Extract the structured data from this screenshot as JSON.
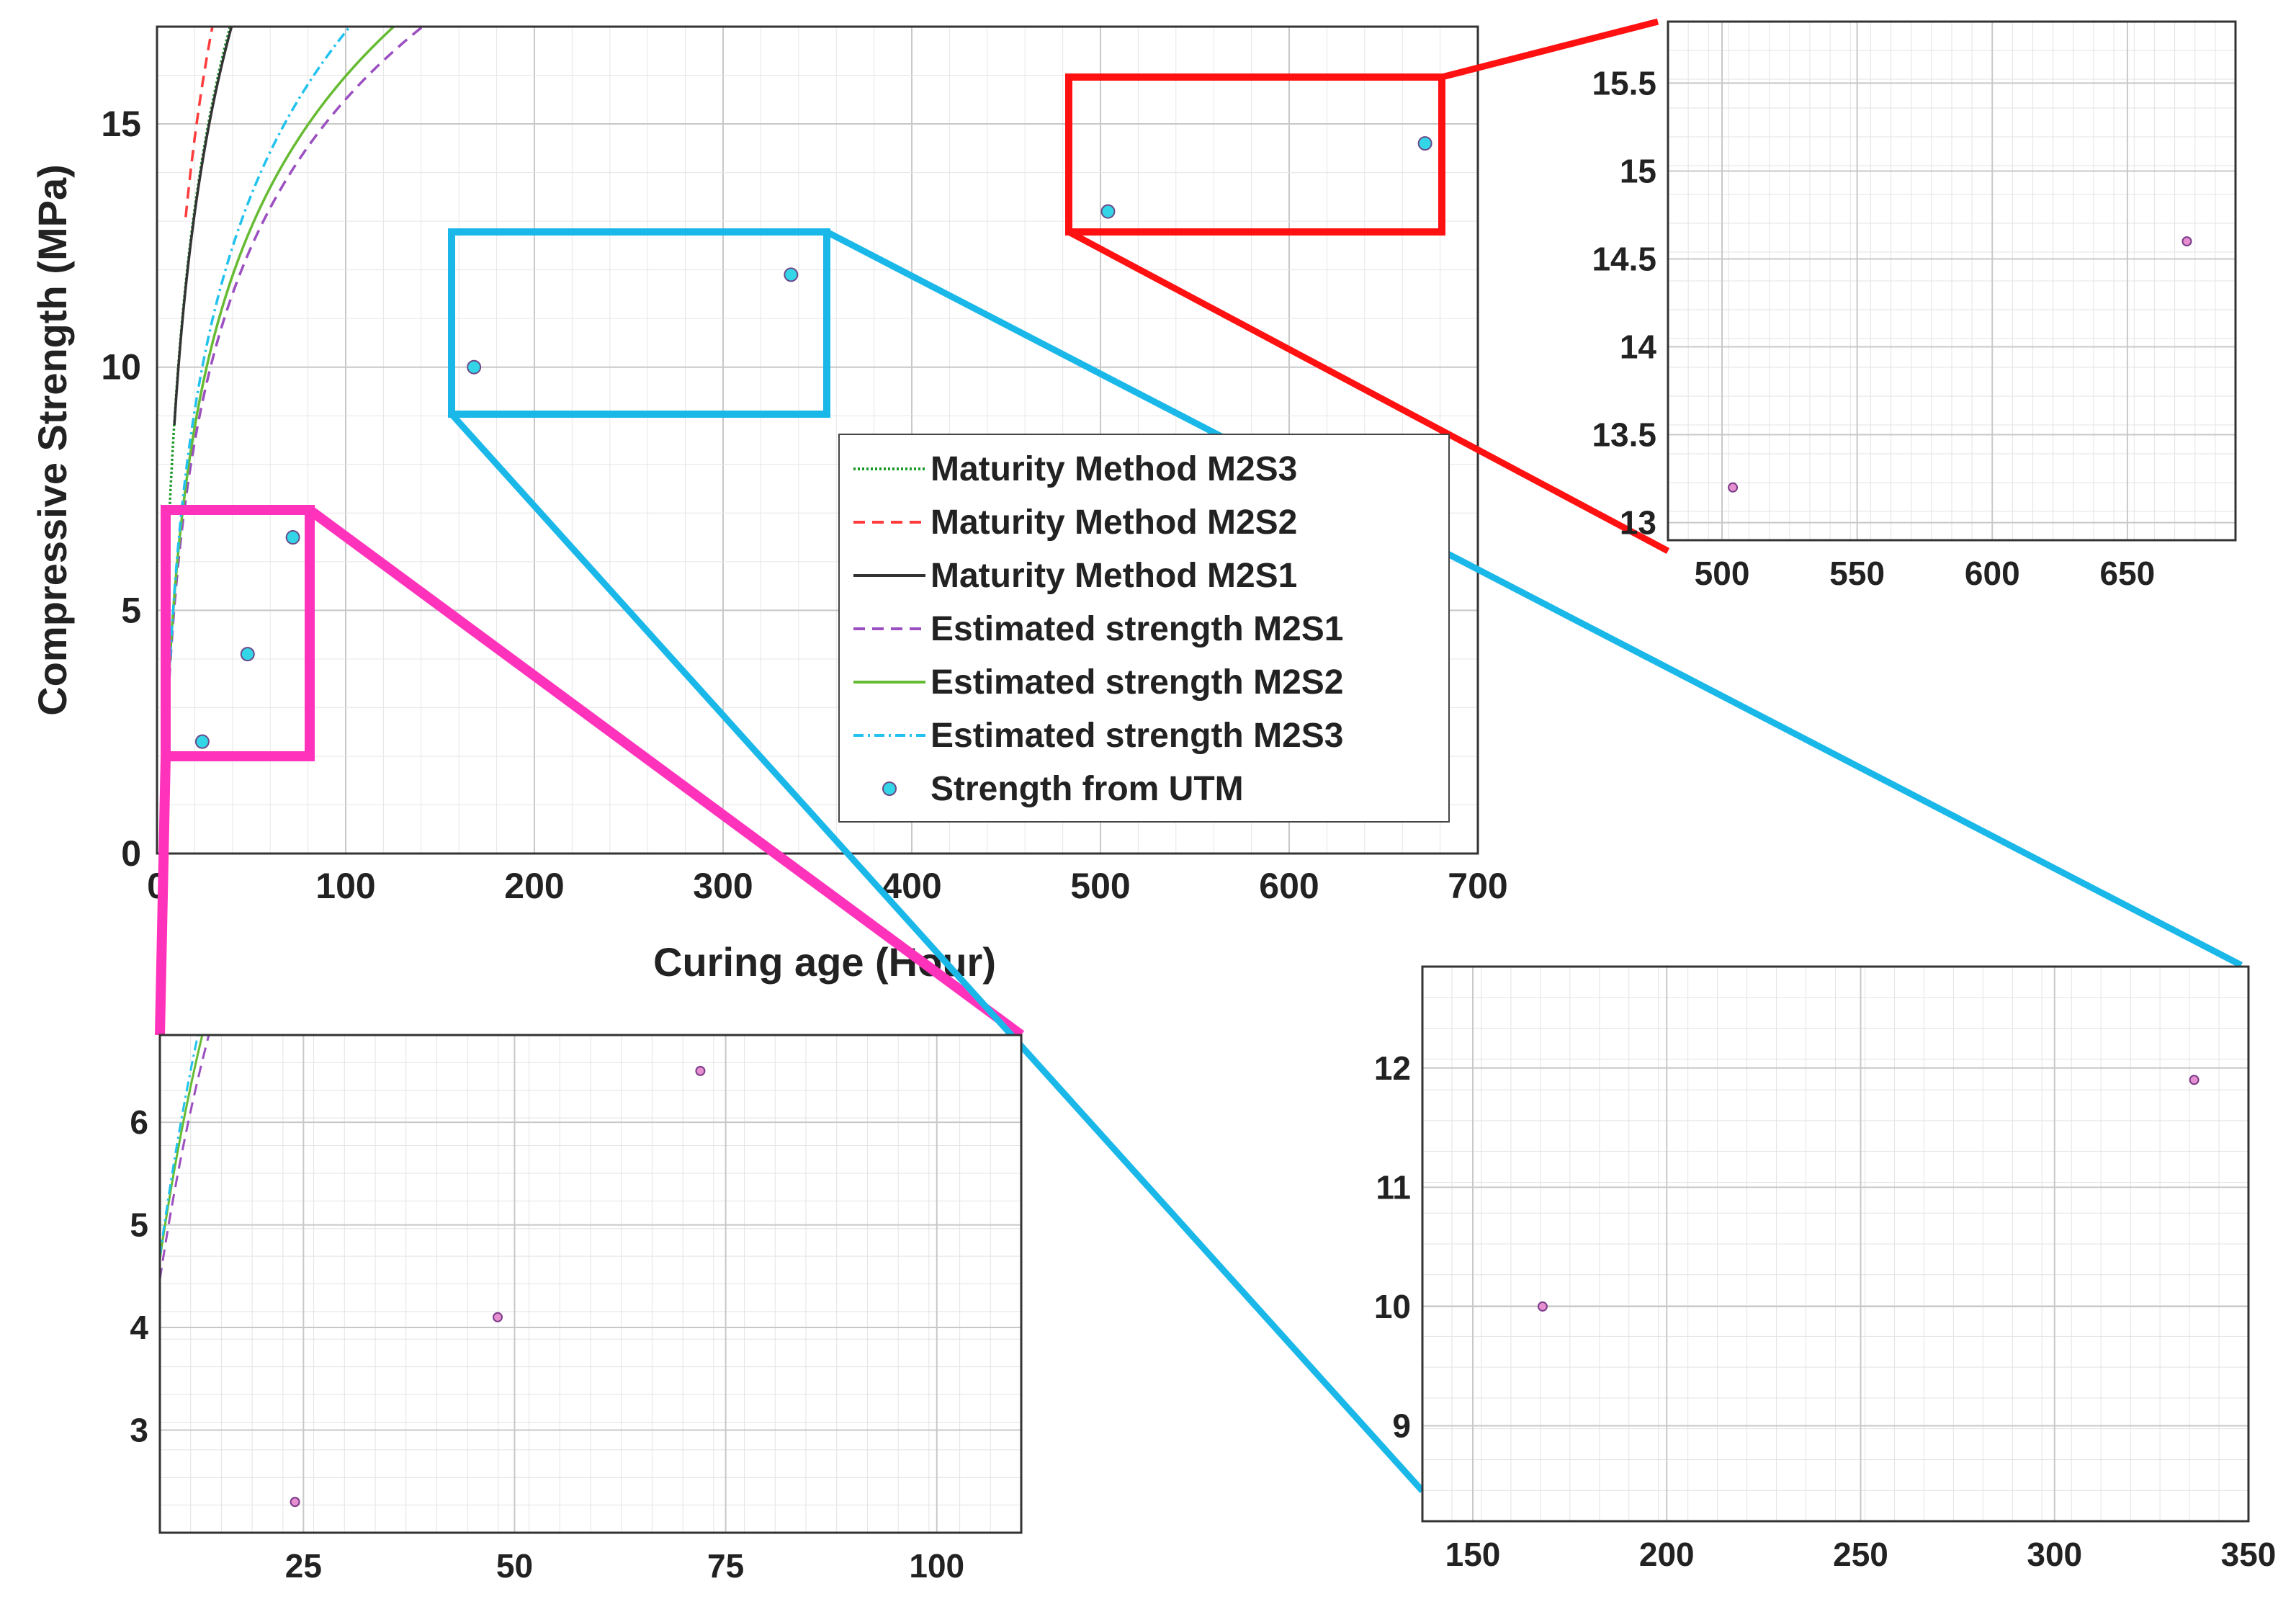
{
  "chart_data": {
    "type": "line",
    "xlabel": "Curing age (Hour)",
    "ylabel": "Compressive Strength (MPa)",
    "xlim": [
      0,
      700
    ],
    "ylim": [
      0,
      17
    ],
    "xticks": [
      "0",
      "100",
      "200",
      "300",
      "400",
      "500",
      "600",
      "700"
    ],
    "yticks": [
      "0",
      "5",
      "10",
      "15"
    ],
    "grid": true,
    "legend_position": "center-right",
    "series": [
      {
        "name": "Maturity Method M2S3",
        "color": "#1a9a2a",
        "dash": "dotted",
        "model": {
          "a": 5.65,
          "b": 14.3,
          "x0": 6
        }
      },
      {
        "name": "Maturity Method M2S2",
        "color": "#ff3b3b",
        "dash": "dashed",
        "model": {
          "a": 5.95,
          "b": 15.8,
          "x0": 15
        }
      },
      {
        "name": "Maturity Method M2S1",
        "color": "#333333",
        "dash": "solid",
        "model": {
          "a": 5.62,
          "b": 14.2,
          "x0": 9
        }
      },
      {
        "name": "Estimated strength M2S1",
        "color": "#9b4fc0",
        "dash": "dashed",
        "model": {
          "a": 4.37,
          "b": 9.27,
          "x0": 4
        }
      },
      {
        "name": "Estimated strength M2S2",
        "color": "#66bb33",
        "dash": "solid",
        "model": {
          "a": 4.48,
          "b": 9.59,
          "x0": 4
        }
      },
      {
        "name": "Estimated strength M2S3",
        "color": "#22c2ee",
        "dash": "dashdot",
        "model": {
          "a": 4.83,
          "b": 10.0,
          "x0": 0
        }
      }
    ],
    "scatter": {
      "name": "Strength from UTM",
      "color": "#33d6e6",
      "x": [
        24,
        48,
        72,
        168,
        336,
        504,
        672
      ],
      "y": [
        2.3,
        4.1,
        6.5,
        10.0,
        11.9,
        13.2,
        14.6
      ]
    },
    "insets": [
      {
        "name": "zoom-late",
        "color": "#ff1111",
        "xlim": [
          480,
          690
        ],
        "ylim": [
          12.9,
          15.85
        ],
        "xticks": [
          "500",
          "550",
          "600",
          "650"
        ],
        "yticks": [
          "13",
          "13.5",
          "14",
          "14.5",
          "15",
          "15.5"
        ]
      },
      {
        "name": "zoom-early",
        "color": "#ff33bb",
        "xlim": [
          8,
          110
        ],
        "ylim": [
          2,
          6.85
        ],
        "xticks": [
          "25",
          "50",
          "75",
          "100"
        ],
        "yticks": [
          "3",
          "4",
          "5",
          "6"
        ]
      },
      {
        "name": "zoom-mid",
        "color": "#1ab8e8",
        "xlim": [
          137,
          350
        ],
        "ylim": [
          8.2,
          12.85
        ],
        "xticks": [
          "150",
          "200",
          "250",
          "300",
          "350"
        ],
        "yticks": [
          "9",
          "10",
          "11",
          "12"
        ]
      }
    ]
  }
}
